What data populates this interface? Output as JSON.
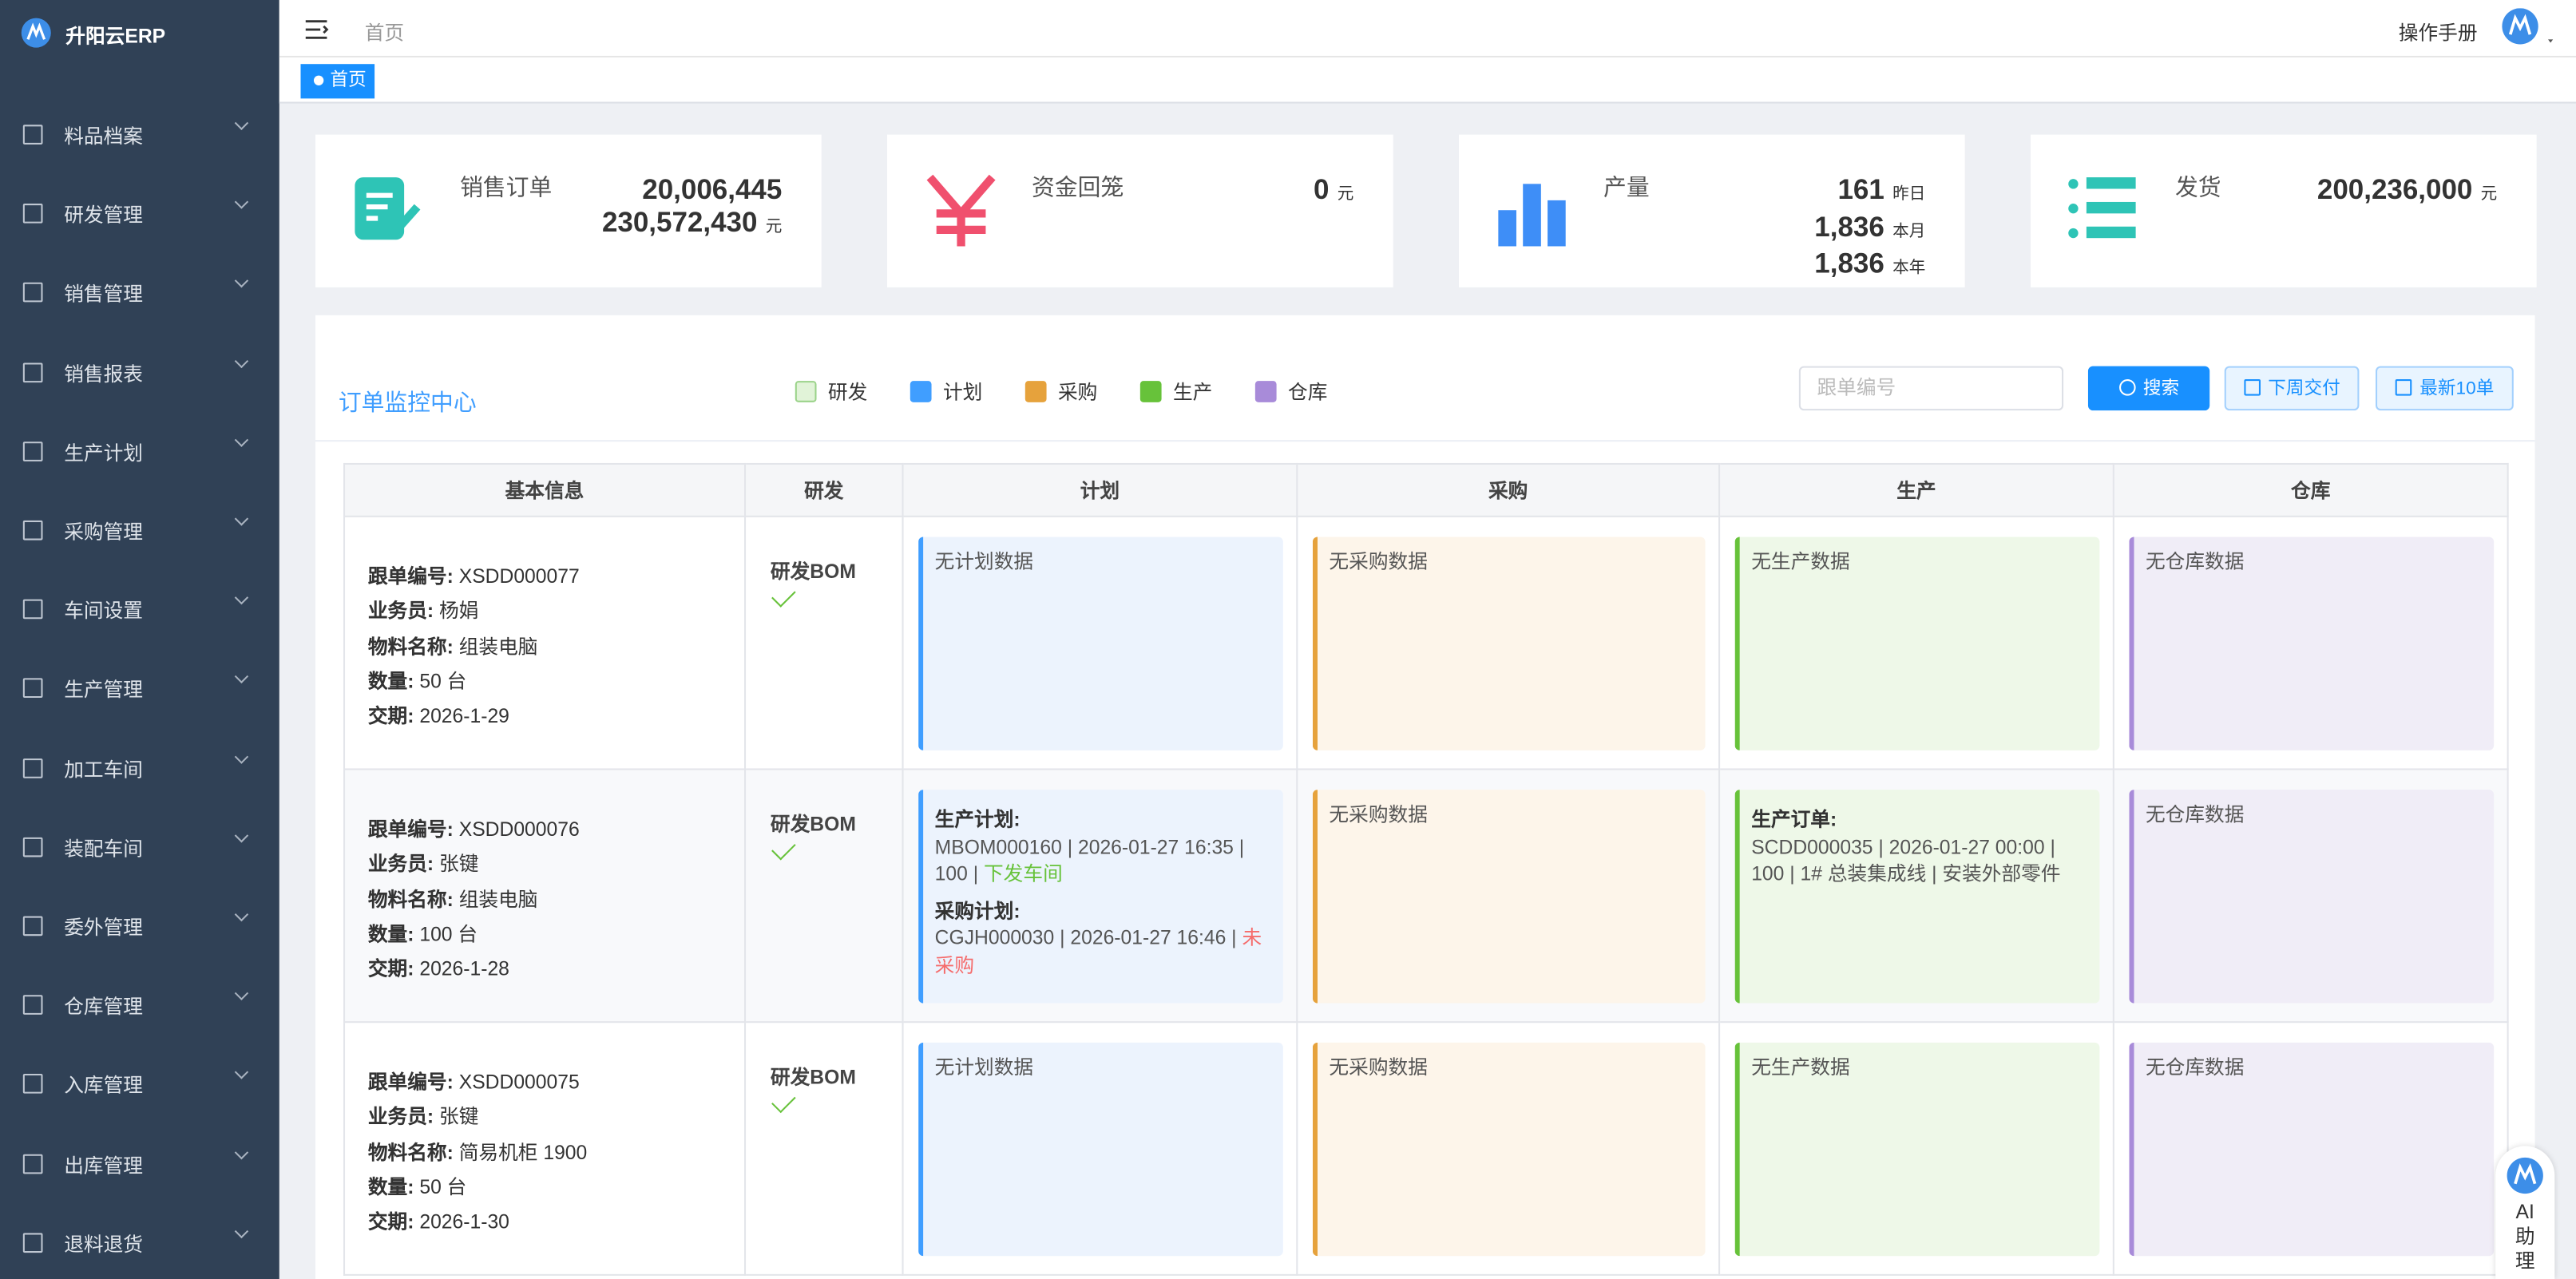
{
  "brand": "升阳云ERP",
  "menu": [
    "料品档案",
    "研发管理",
    "销售管理",
    "销售报表",
    "生产计划",
    "采购管理",
    "车间设置",
    "生产管理",
    "加工车间",
    "装配车间",
    "委外管理",
    "仓库管理",
    "入库管理",
    "出库管理",
    "退料退货"
  ],
  "topbar": {
    "breadcrumb": "首页",
    "manual": "操作手册"
  },
  "tab": "首页",
  "stats": [
    {
      "label": "销售订单",
      "lines": [
        {
          "value": "20,006,445"
        },
        {
          "value": "230,572,430",
          "unit": "元"
        }
      ]
    },
    {
      "label": "资金回笼",
      "lines": [
        {
          "value": "0",
          "unit": "元"
        }
      ]
    },
    {
      "label": "产量",
      "lines": [
        {
          "value": "161",
          "unit": "昨日"
        },
        {
          "value": "1,836",
          "unit": "本月"
        },
        {
          "value": "1,836",
          "unit": "本年"
        }
      ]
    },
    {
      "label": "发货",
      "lines": [
        {
          "value": "200,236,000",
          "unit": "元"
        }
      ]
    }
  ],
  "monitor": {
    "title": "订单监控中心",
    "legend": [
      "研发",
      "计划",
      "采购",
      "生产",
      "仓库"
    ],
    "search_placeholder": "跟单编号",
    "buttons": [
      "搜索",
      "下周交付",
      "最新10单"
    ]
  },
  "table": {
    "headers": [
      "基本信息",
      "研发",
      "计划",
      "采购",
      "生产",
      "仓库"
    ],
    "rows": [
      {
        "info": [
          {
            "label": "跟单编号:",
            "value": "XSDD000077"
          },
          {
            "label": "业务员:",
            "value": "杨娟"
          },
          {
            "label": "物料名称:",
            "value": "组装电脑"
          },
          {
            "label": "数量:",
            "value": "50 台"
          },
          {
            "label": "交期:",
            "value": "2026-1-29"
          }
        ],
        "rd": "研发BOM",
        "plan": "无计划数据",
        "purchase": "无采购数据",
        "production": "无生产数据",
        "warehouse": "无仓库数据"
      },
      {
        "info": [
          {
            "label": "跟单编号:",
            "value": "XSDD000076"
          },
          {
            "label": "业务员:",
            "value": "张键"
          },
          {
            "label": "物料名称:",
            "value": "组装电脑"
          },
          {
            "label": "数量:",
            "value": "100 台"
          },
          {
            "label": "交期:",
            "value": "2026-1-28"
          }
        ],
        "rd": "研发BOM",
        "plan": [
          {
            "title": "生产计划:",
            "text": "MBOM000160 | 2026-01-27 16:35 | 100 | ",
            "status": "下发车间",
            "status_color": "#67c23a"
          },
          {
            "title": "采购计划:",
            "text": "CGJH000030 | 2026-01-27 16:46 | ",
            "status": "未采购",
            "status_color": "#f56c6c"
          }
        ],
        "purchase": "无采购数据",
        "production": [
          {
            "title": "生产订单:",
            "text": "SCDD000035 | 2026-01-27 00:00 | 100 | 1# 总装集成线 | 安装外部零件"
          }
        ],
        "warehouse": "无仓库数据"
      },
      {
        "info": [
          {
            "label": "跟单编号:",
            "value": "XSDD000075"
          },
          {
            "label": "业务员:",
            "value": "张键"
          },
          {
            "label": "物料名称:",
            "value": "简易机柜 1900"
          },
          {
            "label": "数量:",
            "value": "50 台"
          },
          {
            "label": "交期:",
            "value": "2026-1-30"
          }
        ],
        "rd": "研发BOM",
        "plan": "无计划数据",
        "purchase": "无采购数据",
        "production": "无生产数据",
        "warehouse": "无仓库数据"
      }
    ]
  },
  "ai": "AI助理"
}
